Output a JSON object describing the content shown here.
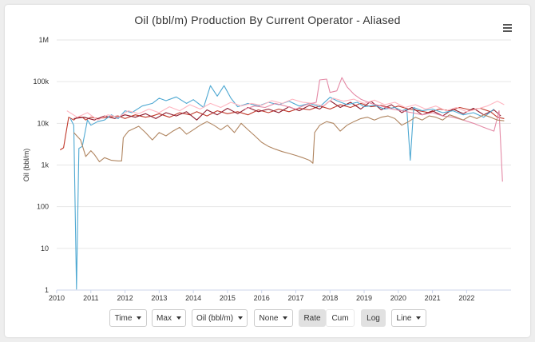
{
  "header": {
    "title": "Oil (bbl/m) Production By Current Operator - Aliased"
  },
  "controls": {
    "time": "Time",
    "range": "Max",
    "product": "Oil (bbl/m)",
    "grouping": "None",
    "rate": "Rate",
    "cum": "Cum",
    "scale": "Log",
    "style": "Line"
  },
  "chart_data": {
    "type": "line",
    "title": "Oil (bbl/m) Production By Current Operator - Aliased",
    "xlabel": "",
    "ylabel": "Oil (bbl/m)",
    "yscale": "log",
    "ylim": [
      1,
      1000000
    ],
    "xlim": [
      2010,
      2023.3
    ],
    "y_ticks": [
      "1",
      "10",
      "100",
      "1k",
      "10k",
      "100k",
      "1M"
    ],
    "x_ticks": [
      "2010",
      "2011",
      "2012",
      "2013",
      "2014",
      "2015",
      "2016",
      "2017",
      "2018",
      "2019",
      "2020",
      "2021",
      "2022"
    ],
    "grid": true,
    "legend": "none",
    "series": [
      {
        "color": "#c0392b",
        "points": [
          [
            2010.1,
            2300
          ],
          [
            2010.2,
            2600
          ],
          [
            2010.35,
            14000
          ],
          [
            2010.5,
            12000
          ],
          [
            2010.6,
            14000
          ],
          [
            2010.75,
            14000
          ],
          [
            2010.85,
            12000
          ],
          [
            2011.0,
            14000
          ],
          [
            2011.2,
            13000
          ],
          [
            2011.5,
            14000
          ],
          [
            2011.8,
            15000
          ],
          [
            2012.0,
            13000
          ],
          [
            2012.3,
            16000
          ],
          [
            2012.6,
            14000
          ],
          [
            2012.8,
            15000
          ],
          [
            2013.0,
            17000
          ],
          [
            2013.3,
            14000
          ],
          [
            2013.6,
            18000
          ],
          [
            2013.9,
            16000
          ],
          [
            2014.1,
            19000
          ],
          [
            2014.4,
            15000
          ],
          [
            2014.7,
            20000
          ],
          [
            2015.0,
            17000
          ],
          [
            2015.3,
            19000
          ],
          [
            2015.6,
            16000
          ],
          [
            2015.9,
            21000
          ],
          [
            2016.2,
            18000
          ],
          [
            2016.5,
            22000
          ],
          [
            2016.8,
            19000
          ],
          [
            2017.1,
            23000
          ],
          [
            2017.4,
            21000
          ],
          [
            2017.7,
            26000
          ],
          [
            2018.0,
            22000
          ],
          [
            2018.3,
            28000
          ],
          [
            2018.6,
            24000
          ],
          [
            2018.9,
            30000
          ],
          [
            2019.2,
            25000
          ],
          [
            2019.5,
            27000
          ],
          [
            2019.8,
            23000
          ],
          [
            2020.0,
            26000
          ],
          [
            2020.3,
            22000
          ],
          [
            2020.6,
            20000
          ],
          [
            2020.9,
            18000
          ],
          [
            2021.2,
            22000
          ],
          [
            2021.5,
            20000
          ],
          [
            2021.8,
            24000
          ],
          [
            2022.1,
            21000
          ],
          [
            2022.4,
            23000
          ],
          [
            2022.7,
            19000
          ],
          [
            2022.9,
            14000
          ],
          [
            2023.1,
            13000
          ]
        ]
      },
      {
        "color": "#8e1c2e",
        "points": [
          [
            2010.5,
            13000
          ],
          [
            2010.8,
            14000
          ],
          [
            2011.1,
            12000
          ],
          [
            2011.4,
            15000
          ],
          [
            2011.7,
            13000
          ],
          [
            2012.0,
            16000
          ],
          [
            2012.3,
            14000
          ],
          [
            2012.6,
            17000
          ],
          [
            2012.9,
            13000
          ],
          [
            2013.2,
            18000
          ],
          [
            2013.5,
            15000
          ],
          [
            2013.8,
            19000
          ],
          [
            2014.1,
            12000
          ],
          [
            2014.4,
            21000
          ],
          [
            2014.7,
            16000
          ],
          [
            2015.0,
            23000
          ],
          [
            2015.3,
            17000
          ],
          [
            2015.6,
            24000
          ],
          [
            2015.9,
            19000
          ],
          [
            2016.2,
            22000
          ],
          [
            2016.5,
            18000
          ],
          [
            2016.8,
            25000
          ],
          [
            2017.1,
            20000
          ],
          [
            2017.4,
            27000
          ],
          [
            2017.7,
            22000
          ],
          [
            2018.0,
            35000
          ],
          [
            2018.3,
            24000
          ],
          [
            2018.6,
            32000
          ],
          [
            2018.9,
            22000
          ],
          [
            2019.2,
            34000
          ],
          [
            2019.5,
            21000
          ],
          [
            2019.8,
            28000
          ],
          [
            2020.1,
            18000
          ],
          [
            2020.4,
            24000
          ],
          [
            2020.7,
            16000
          ],
          [
            2021.0,
            20000
          ],
          [
            2021.3,
            15000
          ],
          [
            2021.6,
            22000
          ],
          [
            2021.9,
            17000
          ],
          [
            2022.2,
            23000
          ],
          [
            2022.5,
            16000
          ],
          [
            2022.8,
            21000
          ],
          [
            2023.0,
            15000
          ]
        ]
      },
      {
        "color": "#4ea8d2",
        "points": [
          [
            2010.4,
            13000
          ],
          [
            2010.5,
            9000
          ],
          [
            2010.58,
            1.05
          ],
          [
            2010.65,
            2500
          ],
          [
            2010.75,
            2800
          ],
          [
            2010.9,
            12000
          ],
          [
            2011.0,
            9000
          ],
          [
            2011.2,
            11000
          ],
          [
            2011.4,
            12000
          ],
          [
            2011.6,
            16000
          ],
          [
            2011.8,
            13000
          ],
          [
            2012.0,
            20000
          ],
          [
            2012.2,
            18000
          ],
          [
            2012.5,
            26000
          ],
          [
            2012.8,
            30000
          ],
          [
            2013.0,
            40000
          ],
          [
            2013.2,
            35000
          ],
          [
            2013.5,
            43000
          ],
          [
            2013.8,
            30000
          ],
          [
            2014.0,
            37000
          ],
          [
            2014.3,
            24000
          ],
          [
            2014.5,
            80000
          ],
          [
            2014.7,
            45000
          ],
          [
            2014.9,
            80000
          ],
          [
            2015.1,
            40000
          ],
          [
            2015.3,
            25000
          ],
          [
            2015.6,
            30000
          ],
          [
            2015.9,
            26000
          ],
          [
            2016.2,
            32000
          ],
          [
            2016.5,
            28000
          ],
          [
            2016.8,
            34000
          ],
          [
            2017.1,
            26000
          ],
          [
            2017.4,
            30000
          ],
          [
            2017.7,
            25000
          ],
          [
            2018.0,
            42000
          ],
          [
            2018.2,
            35000
          ],
          [
            2018.5,
            28000
          ],
          [
            2018.8,
            32000
          ],
          [
            2019.0,
            25000
          ],
          [
            2019.3,
            27000
          ],
          [
            2019.6,
            22000
          ],
          [
            2019.9,
            24000
          ],
          [
            2020.1,
            20000
          ],
          [
            2020.25,
            22000
          ],
          [
            2020.35,
            1300
          ],
          [
            2020.45,
            24000
          ],
          [
            2020.7,
            20000
          ],
          [
            2021.0,
            22000
          ],
          [
            2021.3,
            18000
          ],
          [
            2021.6,
            20000
          ],
          [
            2021.9,
            16000
          ],
          [
            2022.2,
            18000
          ],
          [
            2022.5,
            14000
          ],
          [
            2022.8,
            22000
          ]
        ]
      },
      {
        "color": "#ffb6c1",
        "points": [
          [
            2010.3,
            20000
          ],
          [
            2010.6,
            14000
          ],
          [
            2010.9,
            18000
          ],
          [
            2011.2,
            12000
          ],
          [
            2011.5,
            16000
          ],
          [
            2011.8,
            14000
          ],
          [
            2012.1,
            20000
          ],
          [
            2012.4,
            17000
          ],
          [
            2012.7,
            22000
          ],
          [
            2013.0,
            18000
          ],
          [
            2013.3,
            25000
          ],
          [
            2013.6,
            20000
          ],
          [
            2013.9,
            28000
          ],
          [
            2014.2,
            22000
          ],
          [
            2014.5,
            30000
          ],
          [
            2014.8,
            24000
          ],
          [
            2015.1,
            32000
          ],
          [
            2015.4,
            26000
          ],
          [
            2015.7,
            30000
          ],
          [
            2016.0,
            27000
          ],
          [
            2016.3,
            35000
          ],
          [
            2016.6,
            30000
          ],
          [
            2016.9,
            38000
          ],
          [
            2017.2,
            32000
          ],
          [
            2017.5,
            30000
          ],
          [
            2017.8,
            26000
          ],
          [
            2018.1,
            40000
          ],
          [
            2018.4,
            34000
          ],
          [
            2018.7,
            38000
          ],
          [
            2019.0,
            30000
          ],
          [
            2019.3,
            36000
          ],
          [
            2019.6,
            28000
          ],
          [
            2019.9,
            32000
          ],
          [
            2020.2,
            24000
          ],
          [
            2020.5,
            28000
          ],
          [
            2020.8,
            22000
          ],
          [
            2021.1,
            26000
          ],
          [
            2021.4,
            20000
          ],
          [
            2021.7,
            24000
          ],
          [
            2022.0,
            19000
          ],
          [
            2022.3,
            22000
          ],
          [
            2022.6,
            26000
          ],
          [
            2022.9,
            34000
          ],
          [
            2023.1,
            28000
          ]
        ]
      },
      {
        "color": "#e48aa6",
        "points": [
          [
            2015.5,
            22000
          ],
          [
            2015.8,
            26000
          ],
          [
            2016.1,
            24000
          ],
          [
            2016.4,
            30000
          ],
          [
            2016.7,
            26000
          ],
          [
            2017.0,
            22000
          ],
          [
            2017.3,
            28000
          ],
          [
            2017.6,
            32000
          ],
          [
            2017.7,
            110000
          ],
          [
            2017.9,
            115000
          ],
          [
            2018.0,
            55000
          ],
          [
            2018.2,
            60000
          ],
          [
            2018.35,
            125000
          ],
          [
            2018.5,
            75000
          ],
          [
            2018.7,
            50000
          ],
          [
            2018.9,
            38000
          ],
          [
            2019.2,
            30000
          ],
          [
            2019.5,
            26000
          ],
          [
            2019.8,
            22000
          ],
          [
            2020.1,
            20000
          ],
          [
            2020.4,
            18000
          ],
          [
            2020.7,
            16000
          ],
          [
            2021.0,
            18000
          ],
          [
            2021.3,
            15000
          ],
          [
            2021.6,
            14000
          ],
          [
            2021.9,
            12000
          ],
          [
            2022.2,
            10000
          ],
          [
            2022.5,
            8000
          ],
          [
            2022.8,
            6500
          ],
          [
            2022.95,
            20000
          ],
          [
            2023.05,
            400
          ]
        ]
      },
      {
        "color": "#b08560",
        "points": [
          [
            2010.5,
            6000
          ],
          [
            2010.7,
            4000
          ],
          [
            2010.85,
            1600
          ],
          [
            2011.0,
            2200
          ],
          [
            2011.1,
            1800
          ],
          [
            2011.25,
            1200
          ],
          [
            2011.4,
            1500
          ],
          [
            2011.6,
            1300
          ],
          [
            2011.8,
            1250
          ],
          [
            2011.9,
            1250
          ],
          [
            2011.95,
            4500
          ],
          [
            2012.1,
            6500
          ],
          [
            2012.4,
            8500
          ],
          [
            2012.6,
            6000
          ],
          [
            2012.8,
            4000
          ],
          [
            2013.0,
            6000
          ],
          [
            2013.2,
            5000
          ],
          [
            2013.4,
            6500
          ],
          [
            2013.6,
            8000
          ],
          [
            2013.8,
            5500
          ],
          [
            2014.0,
            7000
          ],
          [
            2014.2,
            9000
          ],
          [
            2014.4,
            11000
          ],
          [
            2014.6,
            9000
          ],
          [
            2014.8,
            7000
          ],
          [
            2015.0,
            9000
          ],
          [
            2015.2,
            6000
          ],
          [
            2015.4,
            10000
          ],
          [
            2015.6,
            7000
          ],
          [
            2015.8,
            5000
          ],
          [
            2016.0,
            3500
          ],
          [
            2016.2,
            2800
          ],
          [
            2016.4,
            2400
          ],
          [
            2016.6,
            2100
          ],
          [
            2016.8,
            1900
          ],
          [
            2017.0,
            1700
          ],
          [
            2017.2,
            1500
          ],
          [
            2017.4,
            1300
          ],
          [
            2017.5,
            1100
          ],
          [
            2017.55,
            6000
          ],
          [
            2017.7,
            9000
          ],
          [
            2017.9,
            11000
          ],
          [
            2018.1,
            10000
          ],
          [
            2018.3,
            6500
          ],
          [
            2018.5,
            9000
          ],
          [
            2018.7,
            11000
          ],
          [
            2018.9,
            13000
          ],
          [
            2019.1,
            14000
          ],
          [
            2019.3,
            12000
          ],
          [
            2019.5,
            14000
          ],
          [
            2019.7,
            15000
          ],
          [
            2019.9,
            13000
          ],
          [
            2020.1,
            9000
          ],
          [
            2020.3,
            11000
          ],
          [
            2020.5,
            14000
          ],
          [
            2020.7,
            12000
          ],
          [
            2020.9,
            15000
          ],
          [
            2021.1,
            14000
          ],
          [
            2021.3,
            12000
          ],
          [
            2021.5,
            16000
          ],
          [
            2021.7,
            14000
          ],
          [
            2021.9,
            12000
          ],
          [
            2022.1,
            15000
          ],
          [
            2022.3,
            13000
          ],
          [
            2022.5,
            16000
          ],
          [
            2022.7,
            14000
          ],
          [
            2022.9,
            12000
          ],
          [
            2023.1,
            11500
          ]
        ]
      }
    ]
  }
}
